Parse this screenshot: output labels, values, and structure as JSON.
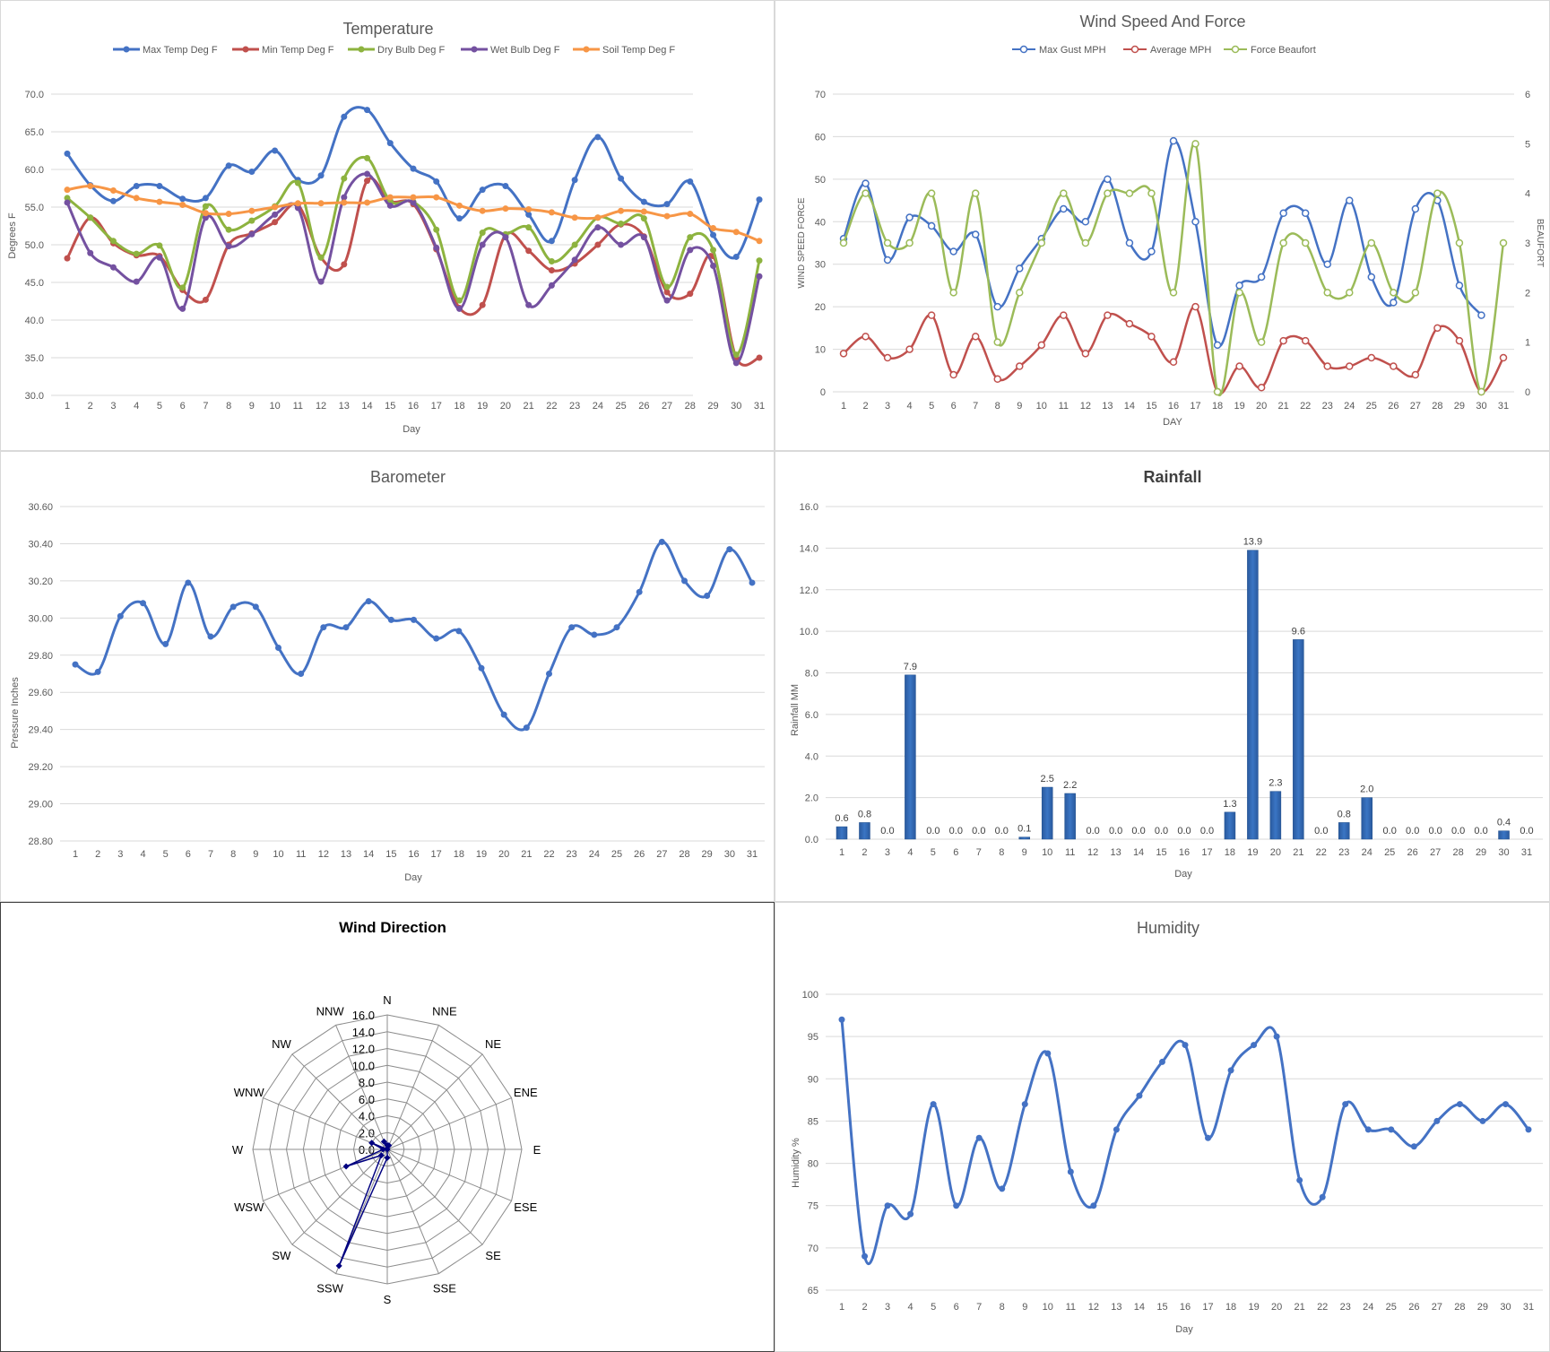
{
  "chart_data": [
    {
      "id": "temperature",
      "type": "line",
      "title": "Temperature",
      "xlabel": "Day",
      "ylabel": "Degrees F",
      "ylim": [
        30,
        70
      ],
      "y_ticks": [
        "30.0",
        "35.0",
        "40.0",
        "45.0",
        "50.0",
        "55.0",
        "60.0",
        "65.0",
        "70.0"
      ],
      "categories": [
        "1",
        "2",
        "3",
        "4",
        "5",
        "6",
        "7",
        "8",
        "9",
        "10",
        "11",
        "12",
        "13",
        "14",
        "15",
        "16",
        "17",
        "18",
        "19",
        "20",
        "21",
        "22",
        "23",
        "24",
        "25",
        "26",
        "27",
        "28",
        "29",
        "30",
        "31"
      ],
      "grid": true,
      "legend": "top",
      "series": [
        {
          "name": "Max Temp Deg F",
          "color": "#4472c4",
          "values": [
            62.1,
            57.9,
            55.8,
            57.8,
            57.8,
            56.1,
            56.2,
            60.5,
            59.7,
            62.5,
            58.6,
            59.2,
            67.0,
            67.9,
            63.5,
            60.1,
            58.4,
            53.5,
            57.3,
            57.8,
            54.0,
            50.5,
            58.6,
            64.3,
            58.8,
            55.7,
            55.4,
            58.4,
            51.3,
            48.4,
            56.0
          ]
        },
        {
          "name": "Min Temp Deg F",
          "color": "#c0504d",
          "values": [
            48.2,
            53.6,
            50.2,
            48.6,
            48.5,
            44.0,
            42.7,
            50.0,
            51.5,
            53.0,
            55.3,
            48.3,
            47.4,
            58.5,
            55.8,
            55.4,
            49.4,
            41.6,
            42.0,
            51.3,
            49.2,
            46.6,
            47.5,
            50.0,
            52.7,
            51.1,
            43.7,
            43.5,
            48.5,
            35.0,
            35.0
          ]
        },
        {
          "name": "Dry Bulb Deg F",
          "color": "#8db33f",
          "values": [
            56.2,
            53.6,
            50.5,
            48.8,
            49.9,
            44.3,
            55.1,
            52.0,
            53.2,
            55.1,
            58.2,
            48.3,
            58.8,
            61.5,
            55.8,
            55.7,
            52.0,
            42.6,
            51.6,
            51.4,
            52.3,
            47.8,
            50.0,
            53.6,
            52.8,
            53.5,
            44.4,
            51.0,
            49.3,
            35.4,
            47.9
          ]
        },
        {
          "name": "Wet Bulb Deg F",
          "color": "#7451a0",
          "values": [
            55.6,
            48.9,
            47.0,
            45.1,
            48.3,
            41.5,
            53.6,
            49.8,
            51.4,
            54.0,
            54.9,
            45.1,
            56.3,
            59.4,
            55.2,
            55.6,
            49.6,
            41.5,
            50.0,
            51.0,
            42.0,
            44.6,
            48.0,
            52.3,
            50.0,
            51.0,
            42.6,
            49.3,
            47.2,
            34.3,
            45.8
          ]
        },
        {
          "name": "Soil Temp Deg F",
          "color": "#f79646",
          "values": [
            57.3,
            57.8,
            57.2,
            56.2,
            55.7,
            55.3,
            54.2,
            54.1,
            54.5,
            55.0,
            55.5,
            55.5,
            55.6,
            55.6,
            56.3,
            56.3,
            56.3,
            55.2,
            54.5,
            54.8,
            54.7,
            54.3,
            53.6,
            53.6,
            54.5,
            54.4,
            53.8,
            54.1,
            52.2,
            51.7,
            50.5
          ]
        }
      ]
    },
    {
      "id": "wind-speed",
      "type": "line",
      "title": "Wind Speed And Force",
      "xlabel": "DAY",
      "ylabel": "WIND SPEED FORCE",
      "y2label": "BEAUFORT",
      "ylim": [
        0,
        70
      ],
      "y_ticks": [
        "0",
        "10",
        "20",
        "30",
        "40",
        "50",
        "60",
        "70"
      ],
      "y2lim": [
        0,
        6
      ],
      "y2_ticks": [
        "0",
        "1",
        "2",
        "3",
        "4",
        "5",
        "6"
      ],
      "categories": [
        "1",
        "2",
        "3",
        "4",
        "5",
        "6",
        "7",
        "8",
        "9",
        "10",
        "11",
        "12",
        "13",
        "14",
        "15",
        "16",
        "17",
        "18",
        "19",
        "20",
        "21",
        "22",
        "23",
        "24",
        "25",
        "26",
        "27",
        "28",
        "29",
        "30",
        "31"
      ],
      "grid": true,
      "legend": "top",
      "series": [
        {
          "name": "Max Gust MPH",
          "color": "#4472c4",
          "axis": "left",
          "values": [
            36,
            49,
            31,
            41,
            39,
            33,
            37,
            20,
            29,
            36,
            43,
            40,
            50,
            35,
            33,
            59,
            40,
            11,
            25,
            27,
            42,
            42,
            30,
            45,
            27,
            21,
            43,
            45,
            25,
            18,
            null
          ]
        },
        {
          "name": "Average MPH",
          "color": "#c0504d",
          "axis": "left",
          "values": [
            9,
            13,
            8,
            10,
            18,
            4,
            13,
            3,
            6,
            11,
            18,
            9,
            18,
            16,
            13,
            7,
            20,
            0,
            6,
            1,
            12,
            12,
            6,
            6,
            8,
            6,
            4,
            15,
            12,
            0,
            8
          ]
        },
        {
          "name": "Force Beaufort",
          "color": "#9bbb59",
          "axis": "right",
          "values": [
            3,
            4,
            3,
            3,
            4,
            2,
            4,
            1,
            2,
            3,
            4,
            3,
            4,
            4,
            4,
            2,
            5,
            0,
            2,
            1,
            3,
            3,
            2,
            2,
            3,
            2,
            2,
            4,
            3,
            0,
            3
          ]
        }
      ]
    },
    {
      "id": "barometer",
      "type": "line",
      "title": "Barometer",
      "xlabel": "Day",
      "ylabel": "Pressure Inches",
      "ylim": [
        28.8,
        30.6
      ],
      "y_ticks": [
        "28.80",
        "29.00",
        "29.20",
        "29.40",
        "29.60",
        "29.80",
        "30.00",
        "30.20",
        "30.40",
        "30.60"
      ],
      "categories": [
        "1",
        "2",
        "3",
        "4",
        "5",
        "6",
        "7",
        "8",
        "9",
        "10",
        "11",
        "12",
        "13",
        "14",
        "15",
        "16",
        "17",
        "18",
        "19",
        "20",
        "21",
        "22",
        "23",
        "24",
        "25",
        "26",
        "27",
        "28",
        "29",
        "30",
        "31"
      ],
      "grid": true,
      "series": [
        {
          "color": "#4472c4",
          "values": [
            29.75,
            29.71,
            30.01,
            30.08,
            29.86,
            30.19,
            29.9,
            30.06,
            30.06,
            29.84,
            29.7,
            29.95,
            29.95,
            30.09,
            29.99,
            29.99,
            29.89,
            29.93,
            29.73,
            29.48,
            29.41,
            29.7,
            29.95,
            29.91,
            29.95,
            30.14,
            30.41,
            30.2,
            30.12,
            30.37,
            30.19
          ]
        }
      ]
    },
    {
      "id": "rainfall",
      "type": "bar",
      "title": "Rainfall",
      "xlabel": "Day",
      "ylabel": "Rainfall MM",
      "ylim": [
        0,
        16
      ],
      "y_ticks": [
        "0.0",
        "2.0",
        "4.0",
        "6.0",
        "8.0",
        "10.0",
        "12.0",
        "14.0",
        "16.0"
      ],
      "categories": [
        "1",
        "2",
        "3",
        "4",
        "5",
        "6",
        "7",
        "8",
        "9",
        "10",
        "11",
        "12",
        "13",
        "14",
        "15",
        "16",
        "17",
        "18",
        "19",
        "20",
        "21",
        "22",
        "23",
        "24",
        "25",
        "26",
        "27",
        "28",
        "29",
        "30",
        "31"
      ],
      "grid": true,
      "values": [
        0.6,
        0.8,
        0.0,
        7.9,
        0.0,
        0.0,
        0.0,
        0.0,
        0.1,
        2.5,
        2.2,
        0.0,
        0.0,
        0.0,
        0.0,
        0.0,
        0.0,
        1.3,
        13.9,
        2.3,
        9.6,
        0.0,
        0.8,
        2.0,
        0.0,
        0.0,
        0.0,
        0.0,
        0.0,
        0.4,
        0.0
      ],
      "labels": [
        "0.6",
        "0.8",
        "0.0",
        "7.9",
        "0.0",
        "0.0",
        "0.0",
        "0.0",
        "0.1",
        "2.5",
        "2.2",
        "0.0",
        "0.0",
        "0.0",
        "0.0",
        "0.0",
        "0.0",
        "1.3",
        "13.9",
        "2.3",
        "9.6",
        "0.0",
        "0.8",
        "2.0",
        "0.0",
        "0.0",
        "0.0",
        "0.0",
        "0.0",
        "0.4",
        "0.0"
      ],
      "color": "#3a75c4"
    },
    {
      "id": "wind-direction",
      "type": "radar",
      "title": "Wind Direction",
      "directions": [
        "N",
        "NNE",
        "NE",
        "ENE",
        "E",
        "ESE",
        "SE",
        "SSE",
        "S",
        "SSW",
        "SW",
        "WSW",
        "W",
        "WNW",
        "NW",
        "NNW"
      ],
      "rlim": [
        0,
        16
      ],
      "r_ticks": [
        "0.0",
        "2.0",
        "4.0",
        "6.0",
        "8.0",
        "10.0",
        "12.0",
        "14.0",
        "16.0"
      ],
      "values": [
        0.5,
        0.5,
        0.0,
        0.0,
        0.0,
        0.0,
        0.0,
        0.0,
        1.0,
        15.0,
        1.0,
        5.3,
        0.5,
        2.0,
        0.0,
        1.0
      ],
      "color": "#000080"
    },
    {
      "id": "humidity",
      "type": "line",
      "title": "Humidity",
      "xlabel": "Day",
      "ylabel": "Humidity %",
      "ylim": [
        65,
        100
      ],
      "y_ticks": [
        "65",
        "70",
        "75",
        "80",
        "85",
        "90",
        "95",
        "100"
      ],
      "categories": [
        "1",
        "2",
        "3",
        "4",
        "5",
        "6",
        "7",
        "8",
        "9",
        "10",
        "11",
        "12",
        "13",
        "14",
        "15",
        "16",
        "17",
        "18",
        "19",
        "20",
        "21",
        "22",
        "23",
        "24",
        "25",
        "26",
        "27",
        "28",
        "29",
        "30",
        "31"
      ],
      "grid": true,
      "series": [
        {
          "color": "#4472c4",
          "values": [
            97,
            69,
            75,
            74,
            87,
            75,
            83,
            77,
            87,
            93,
            79,
            75,
            84,
            88,
            92,
            94,
            83,
            91,
            94,
            95,
            78,
            76,
            87,
            84,
            84,
            82,
            85,
            87,
            85,
            87,
            84
          ]
        }
      ]
    }
  ]
}
